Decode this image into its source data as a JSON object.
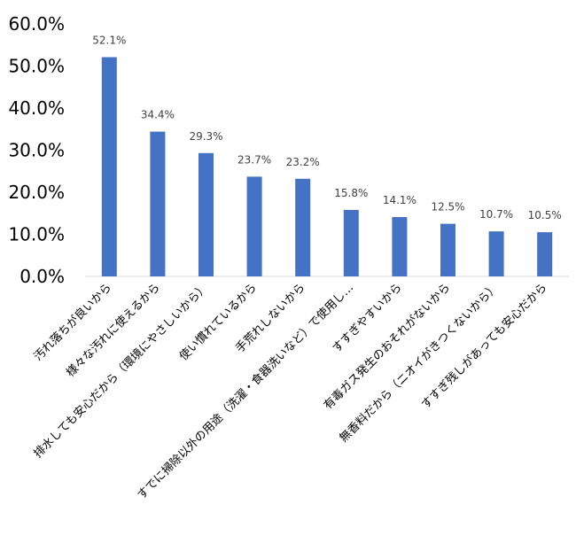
{
  "chart_data": {
    "type": "bar",
    "categories": [
      "汚れ落ちが良いから",
      "様々な汚れに使えるから",
      "排水しても安心だから（環境にやさしいから）",
      "使い慣れているから",
      "手荒れしないから",
      "すでに掃除以外の用途（洗濯・食器洗いなど）で使用し…",
      "すすぎやすいから",
      "有毒ガス発生のおそれがないから",
      "無香料だから（ニオイがきつくないから）",
      "すすぎ残しがあっても安心だから"
    ],
    "values": [
      52.1,
      34.4,
      29.3,
      23.7,
      23.2,
      15.8,
      14.1,
      12.5,
      10.7,
      10.5
    ],
    "value_labels": [
      "52.1%",
      "34.4%",
      "29.3%",
      "23.7%",
      "23.2%",
      "15.8%",
      "14.1%",
      "12.5%",
      "10.7%",
      "10.5%"
    ],
    "ylim": [
      0,
      60
    ],
    "yticks": [
      0,
      10,
      20,
      30,
      40,
      50,
      60
    ],
    "ytick_labels": [
      "0.0%",
      "10.0%",
      "20.0%",
      "30.0%",
      "40.0%",
      "50.0%",
      "60.0%"
    ],
    "grid": false,
    "bar_color": "#4472C4"
  }
}
